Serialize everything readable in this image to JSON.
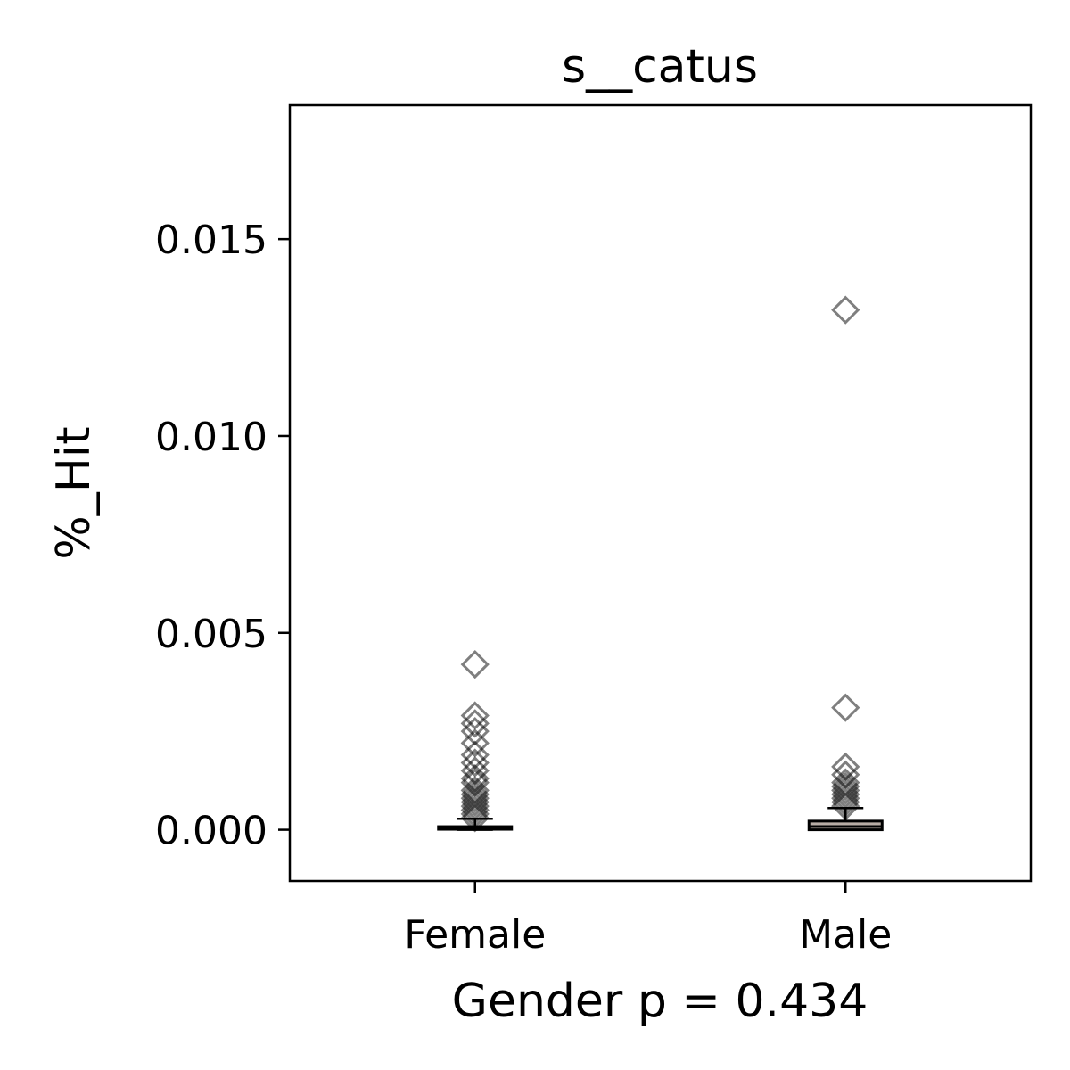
{
  "chart_data": {
    "type": "box",
    "title": "s__catus",
    "xlabel": "Gender p = 0.434",
    "ylabel": "%_Hit",
    "categories": [
      "Female",
      "Male"
    ],
    "ylim": [
      -0.0013,
      0.0184
    ],
    "yticks": [
      0.0,
      0.005,
      0.01,
      0.015
    ],
    "ytick_labels": [
      "0.000",
      "0.005",
      "0.010",
      "0.015"
    ],
    "grid": false,
    "boxes": [
      {
        "category": "Female",
        "q1": 2e-05,
        "median": 4e-05,
        "q3": 8e-05,
        "whisker_low": 0.0,
        "whisker_high": 0.00028,
        "fill": "#000000",
        "outliers": [
          0.0042,
          0.0029,
          0.0027,
          0.0025,
          0.0022,
          0.0019,
          0.0017,
          0.0015,
          0.0013,
          0.0012,
          0.001,
          0.0009,
          0.0008,
          0.0007,
          0.0006,
          0.0005,
          0.0004,
          0.0003
        ]
      },
      {
        "category": "Male",
        "q1": 0.0,
        "median": 8e-05,
        "q3": 0.00022,
        "whisker_low": 0.0,
        "whisker_high": 0.00055,
        "fill": "#b8ada5",
        "outliers": [
          0.0132,
          0.0031,
          0.0016,
          0.0014,
          0.0012,
          0.0011,
          0.001,
          0.0009,
          0.0008,
          0.0007,
          0.0006
        ]
      }
    ],
    "colors": {
      "outlier_edge": "#555555",
      "box_edge": "#000000"
    }
  }
}
